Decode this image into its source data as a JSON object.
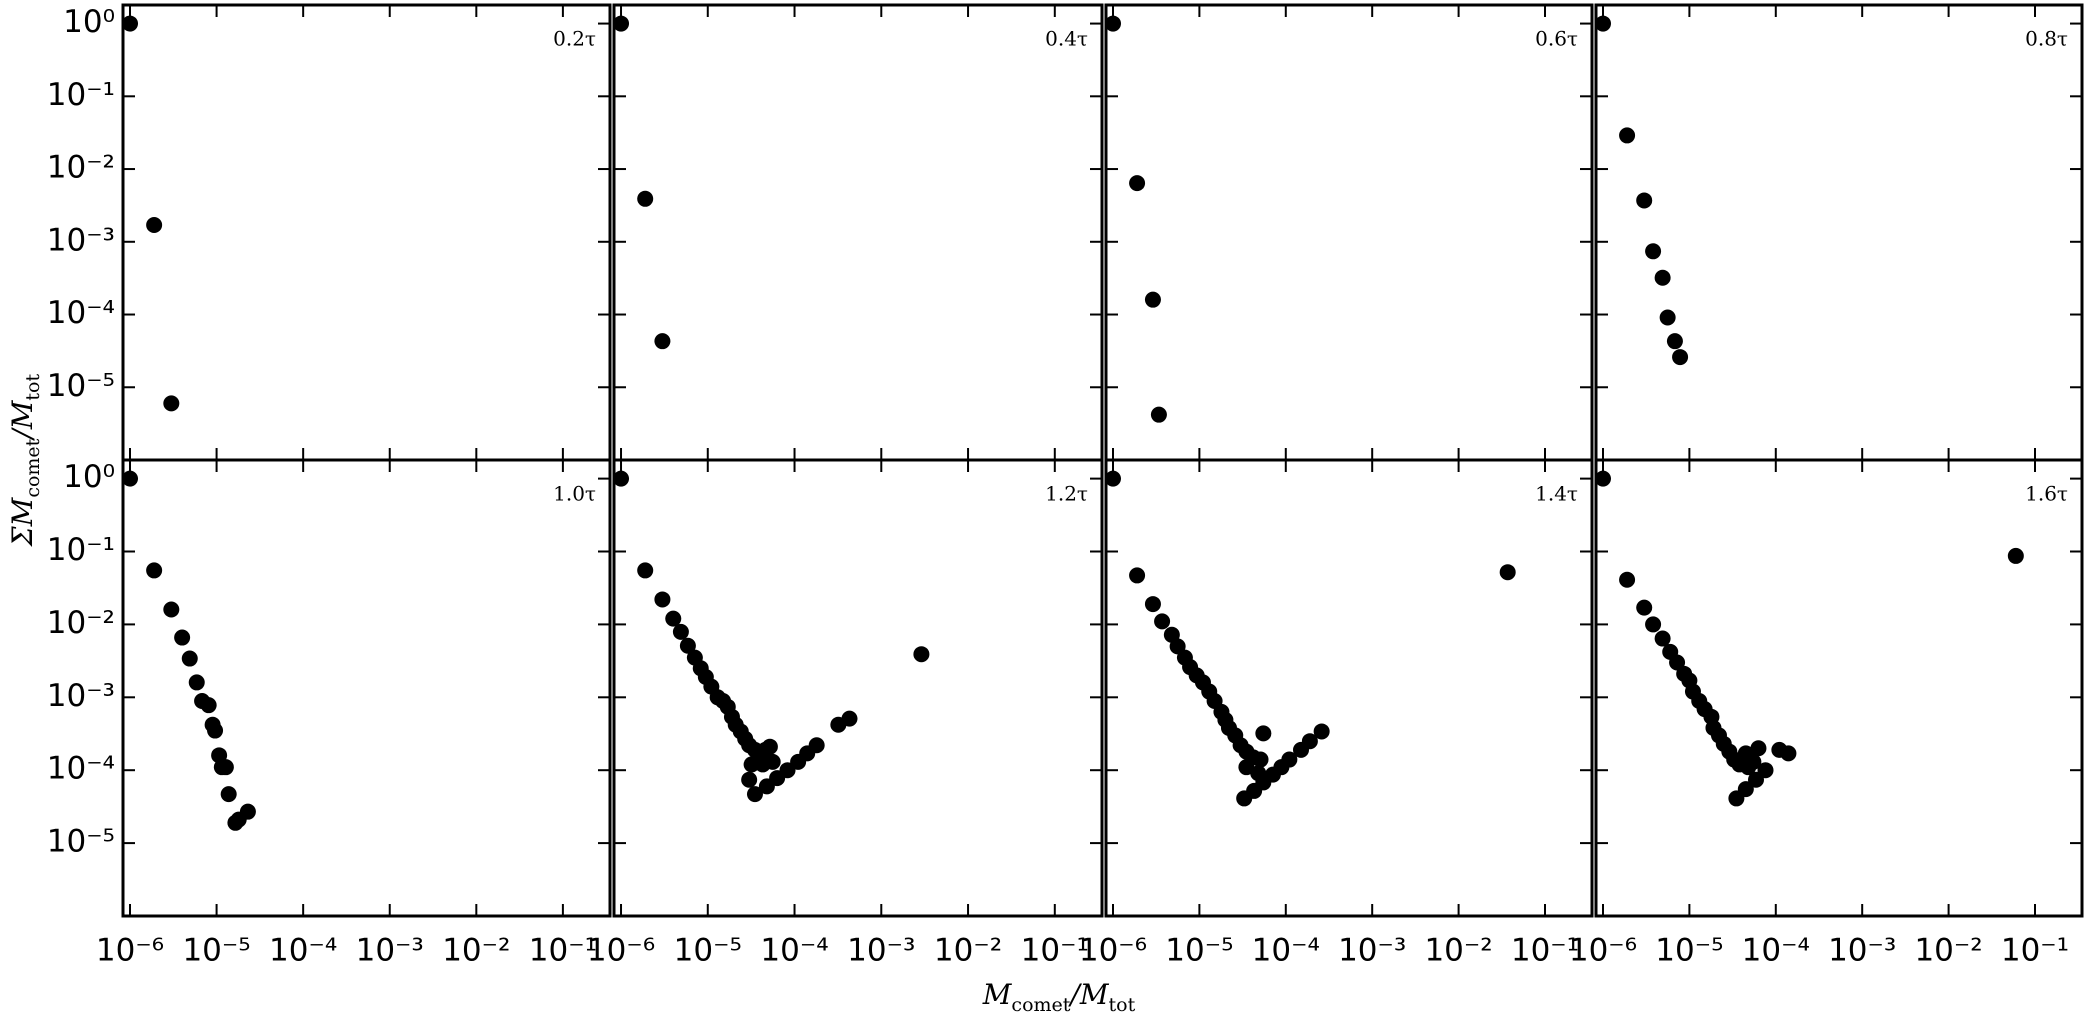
{
  "chart_data": [
    {
      "type": "scatter",
      "annotation": "0.2τ",
      "color": "#000000",
      "log_x": true,
      "log_y": true,
      "x": [
        1e-06,
        1.9e-06,
        3e-06
      ],
      "values": [
        1,
        0.0017,
        6e-06
      ],
      "xlim": [
        8.3e-07,
        0.35
      ],
      "ylim": [
        1e-06,
        1.8
      ],
      "xticks": [
        1e-06,
        1e-05,
        0.0001,
        0.001,
        0.01,
        0.1
      ],
      "yticks": [
        {
          "value": 1,
          "label": "10⁰"
        },
        {
          "value": 0.1,
          "label": "10⁻¹"
        },
        {
          "value": 0.01,
          "label": "10⁻²"
        },
        {
          "value": 0.001,
          "label": "10⁻³"
        },
        {
          "value": 0.0001,
          "label": "10⁻⁴"
        },
        {
          "value": 1e-05,
          "label": "10⁻⁵"
        }
      ]
    },
    {
      "type": "scatter",
      "annotation": "0.4τ",
      "color": "#000000",
      "log_x": true,
      "log_y": true,
      "x": [
        1e-06,
        1.9e-06,
        3e-06
      ],
      "values": [
        1,
        0.0039,
        4.3e-05
      ],
      "xlim": [
        8.3e-07,
        0.35
      ],
      "ylim": [
        1e-06,
        1.8
      ],
      "xticks": [
        1e-06,
        1e-05,
        0.0001,
        0.001,
        0.01,
        0.1
      ],
      "yticks": [
        1,
        0.1,
        0.01,
        0.001,
        0.0001,
        1e-05
      ]
    },
    {
      "type": "scatter",
      "annotation": "0.6τ",
      "color": "#000000",
      "log_x": true,
      "log_y": true,
      "x": [
        1e-06,
        1.9e-06,
        2.9e-06,
        3.4e-06
      ],
      "values": [
        1,
        0.0064,
        0.00016,
        4.2e-06
      ],
      "xlim": [
        8.3e-07,
        0.35
      ],
      "ylim": [
        1e-06,
        1.8
      ],
      "xticks": [
        1e-06,
        1e-05,
        0.0001,
        0.001,
        0.01,
        0.1
      ],
      "yticks": [
        1,
        0.1,
        0.01,
        0.001,
        0.0001,
        1e-05
      ]
    },
    {
      "type": "scatter",
      "annotation": "0.8τ",
      "color": "#000000",
      "log_x": true,
      "log_y": true,
      "x": [
        1e-06,
        1.9e-06,
        3e-06,
        3.8e-06,
        4.9e-06,
        5.6e-06,
        6.8e-06,
        7.8e-06
      ],
      "values": [
        1,
        0.029,
        0.0037,
        0.00074,
        0.00032,
        9.1e-05,
        4.3e-05,
        2.6e-05
      ],
      "xlim": [
        8.3e-07,
        0.35
      ],
      "ylim": [
        1e-06,
        1.8
      ],
      "xticks": [
        1e-06,
        1e-05,
        0.0001,
        0.001,
        0.01,
        0.1
      ],
      "yticks": [
        1,
        0.1,
        0.01,
        0.001,
        0.0001,
        1e-05
      ]
    },
    {
      "type": "scatter",
      "annotation": "1.0τ",
      "color": "#000000",
      "log_x": true,
      "log_y": true,
      "x": [
        1e-06,
        1.9e-06,
        3e-06,
        4e-06,
        4.9e-06,
        5.9e-06,
        6.8e-06,
        8.1e-06,
        9e-06,
        9.6e-06,
        1.07e-05,
        1.15e-05,
        1.28e-05,
        1.38e-05,
        1.65e-05,
        1.8e-05,
        2.3e-05
      ],
      "values": [
        1,
        0.055,
        0.016,
        0.0066,
        0.0034,
        0.0016,
        0.00089,
        0.00078,
        0.00042,
        0.00035,
        0.00016,
        0.00011,
        0.00011,
        4.7e-05,
        1.9e-05,
        2.1e-05,
        2.7e-05
      ],
      "xlim": [
        8.3e-07,
        0.35
      ],
      "ylim": [
        1e-06,
        1.8
      ],
      "xticks": [
        {
          "value": 1e-06,
          "label": "10⁻⁶"
        },
        {
          "value": 1e-05,
          "label": "10⁻⁵"
        },
        {
          "value": 0.0001,
          "label": "10⁻⁴"
        },
        {
          "value": 0.001,
          "label": "10⁻³"
        },
        {
          "value": 0.01,
          "label": "10⁻²"
        },
        {
          "value": 0.1,
          "label": "10⁻¹"
        }
      ],
      "yticks": [
        {
          "value": 1,
          "label": "10⁰"
        },
        {
          "value": 0.1,
          "label": "10⁻¹"
        },
        {
          "value": 0.01,
          "label": "10⁻²"
        },
        {
          "value": 0.001,
          "label": "10⁻³"
        },
        {
          "value": 0.0001,
          "label": "10⁻⁴"
        },
        {
          "value": 1e-05,
          "label": "10⁻⁵"
        }
      ]
    },
    {
      "type": "scatter",
      "annotation": "1.2τ",
      "color": "#000000",
      "log_x": true,
      "log_y": true,
      "x": [
        1e-06,
        1.9e-06,
        3e-06,
        4e-06,
        4.9e-06,
        5.9e-06,
        7.1e-06,
        8.3e-06,
        9.5e-06,
        1.1e-05,
        1.3e-05,
        1.5e-05,
        1.7e-05,
        1.9e-05,
        2.1e-05,
        2.4e-05,
        2.7e-05,
        3e-05,
        3.5e-05,
        4e-05,
        4.6e-05,
        5.2e-05,
        3.2e-05,
        4.3e-05,
        5.6e-05,
        3e-05,
        3.5e-05,
        4.8e-05,
        6.3e-05,
        8.3e-05,
        0.00011,
        0.00014,
        0.00018,
        0.00032,
        0.00043,
        0.0029
      ],
      "values": [
        1,
        0.055,
        0.022,
        0.012,
        0.0079,
        0.0051,
        0.0035,
        0.0025,
        0.0019,
        0.0014,
        0.001,
        0.00089,
        0.00074,
        0.00054,
        0.00042,
        0.00034,
        0.00027,
        0.00022,
        0.00019,
        0.00017,
        0.00019,
        0.00021,
        0.00012,
        0.00012,
        0.00013,
        7.4e-05,
        4.7e-05,
        6e-05,
        7.8e-05,
        0.0001,
        0.00013,
        0.00017,
        0.00022,
        0.00042,
        0.00051,
        0.0039
      ],
      "xlim": [
        8.3e-07,
        0.35
      ],
      "ylim": [
        1e-06,
        1.8
      ],
      "xticks": [
        {
          "value": 1e-06,
          "label": "10⁻⁶"
        },
        {
          "value": 1e-05,
          "label": "10⁻⁵"
        },
        {
          "value": 0.0001,
          "label": "10⁻⁴"
        },
        {
          "value": 0.001,
          "label": "10⁻³"
        },
        {
          "value": 0.01,
          "label": "10⁻²"
        },
        {
          "value": 0.1,
          "label": "10⁻¹"
        }
      ],
      "yticks": [
        1,
        0.1,
        0.01,
        0.001,
        0.0001,
        1e-05
      ]
    },
    {
      "type": "scatter",
      "annotation": "1.4τ",
      "color": "#000000",
      "log_x": true,
      "log_y": true,
      "x": [
        1e-06,
        1.9e-06,
        2.9e-06,
        3.7e-06,
        4.8e-06,
        5.6e-06,
        6.8e-06,
        7.8e-06,
        9.3e-06,
        1.1e-05,
        1.3e-05,
        1.5e-05,
        1.8e-05,
        2e-05,
        2.2e-05,
        2.6e-05,
        3e-05,
        3.5e-05,
        4.2e-05,
        5.1e-05,
        5.5e-05,
        3.5e-05,
        4.8e-05,
        3.3e-05,
        4.3e-05,
        5.5e-05,
        7.1e-05,
        8.9e-05,
        0.00011,
        0.00015,
        0.00019,
        0.00026,
        0.037
      ],
      "values": [
        1,
        0.047,
        0.019,
        0.011,
        0.0072,
        0.005,
        0.0035,
        0.0026,
        0.002,
        0.0016,
        0.0012,
        0.00089,
        0.00063,
        0.00049,
        0.00038,
        0.0003,
        0.00022,
        0.00018,
        0.00015,
        0.00014,
        0.00032,
        0.00011,
        9.1e-05,
        4.1e-05,
        5.2e-05,
        6.8e-05,
        8.7e-05,
        0.00011,
        0.00014,
        0.00019,
        0.00025,
        0.00034,
        0.052
      ],
      "xlim": [
        8.3e-07,
        0.35
      ],
      "ylim": [
        1e-06,
        1.8
      ],
      "xticks": [
        {
          "value": 1e-06,
          "label": "10⁻⁶"
        },
        {
          "value": 1e-05,
          "label": "10⁻⁵"
        },
        {
          "value": 0.0001,
          "label": "10⁻⁴"
        },
        {
          "value": 0.001,
          "label": "10⁻³"
        },
        {
          "value": 0.01,
          "label": "10⁻²"
        },
        {
          "value": 0.1,
          "label": "10⁻¹"
        }
      ],
      "yticks": [
        1,
        0.1,
        0.01,
        0.001,
        0.0001,
        1e-05
      ]
    },
    {
      "type": "scatter",
      "annotation": "1.6τ",
      "color": "#000000",
      "log_x": true,
      "log_y": true,
      "x": [
        1e-06,
        1.9e-06,
        3e-06,
        3.8e-06,
        4.9e-06,
        6e-06,
        7.2e-06,
        8.7e-06,
        1e-05,
        1.1e-05,
        1.3e-05,
        1.5e-05,
        1.8e-05,
        1.9e-05,
        2.2e-05,
        2.5e-05,
        2.9e-05,
        3.3e-05,
        3.8e-05,
        4.8e-05,
        6.3e-05,
        4.5e-05,
        5.5e-05,
        3.5e-05,
        4.5e-05,
        5.9e-05,
        7.6e-05,
        0.00011,
        0.00014,
        0.06
      ],
      "values": [
        1,
        0.041,
        0.017,
        0.01,
        0.0064,
        0.0042,
        0.003,
        0.0021,
        0.0017,
        0.0012,
        0.00089,
        0.00069,
        0.00054,
        0.00038,
        0.0003,
        0.00023,
        0.00018,
        0.00014,
        0.00012,
        0.00011,
        0.0002,
        0.00017,
        0.00013,
        4.1e-05,
        5.5e-05,
        7.4e-05,
        0.0001,
        0.00019,
        0.00017,
        0.087
      ],
      "xlim": [
        8.3e-07,
        0.35
      ],
      "ylim": [
        1e-06,
        1.8
      ],
      "xticks": [
        {
          "value": 1e-06,
          "label": "10⁻⁶"
        },
        {
          "value": 1e-05,
          "label": "10⁻⁵"
        },
        {
          "value": 0.0001,
          "label": "10⁻⁴"
        },
        {
          "value": 0.001,
          "label": "10⁻³"
        },
        {
          "value": 0.01,
          "label": "10⁻²"
        },
        {
          "value": 0.1,
          "label": "10⁻¹"
        }
      ],
      "yticks": [
        1,
        0.1,
        0.01,
        0.001,
        0.0001,
        1e-05
      ]
    }
  ],
  "x_label": [
    "M",
    "comet",
    "/M",
    "tot"
  ],
  "y_label": [
    "ΣM",
    "comet",
    "/M",
    "tot"
  ]
}
